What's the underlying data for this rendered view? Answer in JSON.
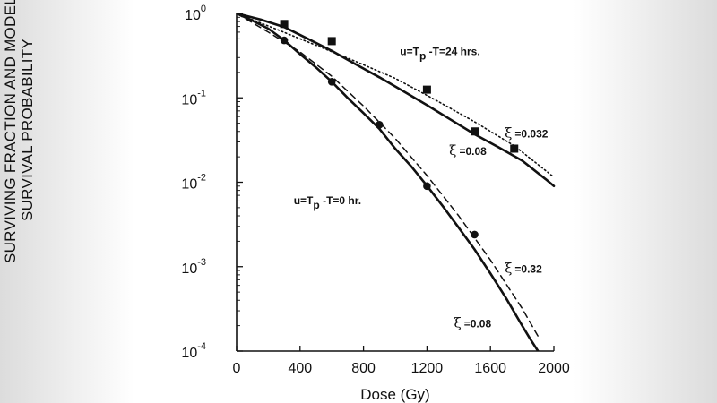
{
  "chart_data": {
    "type": "line",
    "xlabel": "Dose (Gy)",
    "ylabel_lines": [
      "SURVIVING FRACTION AND MODEL",
      "SURVIVAL PROBABILITY"
    ],
    "xlim": [
      0,
      2000
    ],
    "ylim_log10": [
      -4,
      0
    ],
    "y_scale": "log",
    "grid": false,
    "x_ticks": [
      {
        "value": 0,
        "label": "0"
      },
      {
        "value": 400,
        "label": "400"
      },
      {
        "value": 800,
        "label": "800"
      },
      {
        "value": 1200,
        "label": "1200"
      },
      {
        "value": 1600,
        "label": "1600"
      },
      {
        "value": 2000,
        "label": "2000"
      }
    ],
    "y_ticks": [
      {
        "exp": 0,
        "base": "10",
        "sup": "0"
      },
      {
        "exp": -1,
        "base": "10",
        "sup": "-1"
      },
      {
        "exp": -2,
        "base": "10",
        "sup": "-2"
      },
      {
        "exp": -3,
        "base": "10",
        "sup": "-3"
      },
      {
        "exp": -4,
        "base": "10",
        "sup": "-4"
      }
    ],
    "group_labels": [
      {
        "text": "u=T",
        "sub": "p",
        "rest": " -T=24  hrs.",
        "anchor": {
          "x": 1030,
          "y": 0.32
        }
      },
      {
        "text": "u=T",
        "sub": "p",
        "rest": " -T=0  hr.",
        "anchor": {
          "x": 360,
          "y": 0.0055
        }
      }
    ],
    "annotations": [
      {
        "symbol": "ξ",
        "value": "=0.032",
        "anchor": {
          "x": 1690,
          "y": 0.034
        }
      },
      {
        "symbol": "ξ",
        "value": "=0.08",
        "anchor": {
          "x": 1340,
          "y": 0.021
        }
      },
      {
        "symbol": "ξ",
        "value": "=0.32",
        "anchor": {
          "x": 1690,
          "y": 0.00085
        }
      },
      {
        "symbol": "ξ",
        "value": "=0.08",
        "anchor": {
          "x": 1370,
          "y": 0.00019
        }
      }
    ],
    "series": [
      {
        "line": "solid",
        "x": [
          0,
          150,
          300,
          450,
          600,
          750,
          900,
          1050,
          1200,
          1350,
          1500,
          1650,
          1800,
          1950,
          2000
        ],
        "y": [
          1,
          0.85,
          0.69,
          0.5,
          0.36,
          0.25,
          0.175,
          0.12,
          0.082,
          0.055,
          0.037,
          0.026,
          0.018,
          0.0108,
          0.009
        ]
      },
      {
        "line": "dotted",
        "x": [
          0,
          250,
          500,
          750,
          1000,
          1250,
          1500,
          1750,
          2000
        ],
        "y": [
          1,
          0.65,
          0.42,
          0.27,
          0.17,
          0.095,
          0.052,
          0.027,
          0.0115
        ]
      },
      {
        "line": "solid",
        "x": [
          0,
          100,
          200,
          300,
          400,
          500,
          600,
          700,
          800,
          900,
          1000,
          1100,
          1200,
          1300,
          1400,
          1500,
          1600,
          1700,
          1800,
          1850,
          1900
        ],
        "y": [
          1,
          0.82,
          0.66,
          0.48,
          0.33,
          0.23,
          0.155,
          0.1,
          0.066,
          0.043,
          0.025,
          0.0155,
          0.0091,
          0.0052,
          0.0029,
          0.0016,
          0.00083,
          0.00042,
          0.0002,
          0.00014,
          0.0001
        ]
      },
      {
        "line": "dashed",
        "x": [
          0,
          200,
          400,
          600,
          800,
          1000,
          1200,
          1400,
          1600,
          1800,
          1900
        ],
        "y": [
          1,
          0.6,
          0.35,
          0.18,
          0.08,
          0.033,
          0.012,
          0.004,
          0.0012,
          0.00032,
          0.00015
        ]
      },
      {
        "marker": "square",
        "x": [
          300,
          600,
          1200,
          1500,
          1750
        ],
        "y": [
          0.75,
          0.47,
          0.125,
          0.04,
          0.025
        ]
      },
      {
        "marker": "circle",
        "x": [
          300,
          600,
          900,
          1200,
          1500
        ],
        "y": [
          0.48,
          0.155,
          0.048,
          0.009,
          0.0024
        ]
      }
    ]
  }
}
